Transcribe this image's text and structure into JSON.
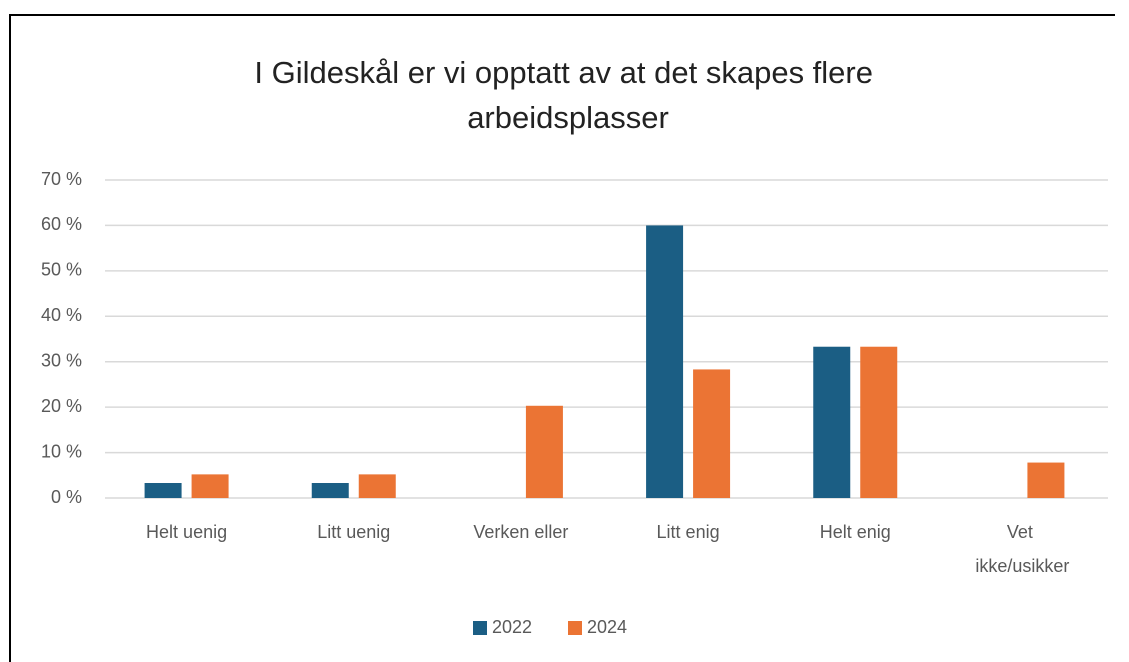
{
  "chart_data": {
    "type": "bar",
    "title": "I Gildeskål er vi opptatt av at det skapes flere arbeidsplasser",
    "categories": [
      "Helt uenig",
      "Litt uenig",
      "Verken eller",
      "Litt enig",
      "Helt enig",
      "Vet ikke/usikker"
    ],
    "series": [
      {
        "name": "2022",
        "color": "#1b5e84",
        "values": [
          3.3,
          3.3,
          0,
          60,
          33.3,
          0
        ]
      },
      {
        "name": "2024",
        "color": "#eb7434",
        "values": [
          5.2,
          5.2,
          20.3,
          28.3,
          33.3,
          7.8
        ]
      }
    ],
    "ylim": [
      0,
      70
    ],
    "yticks": [
      {
        "value": 0,
        "label": "0 %"
      },
      {
        "value": 10,
        "label": "10 %"
      },
      {
        "value": 20,
        "label": "20 %"
      },
      {
        "value": 30,
        "label": "30 %"
      },
      {
        "value": 40,
        "label": "40 %"
      },
      {
        "value": 50,
        "label": "50 %"
      },
      {
        "value": 60,
        "label": "60 %"
      },
      {
        "value": 70,
        "label": "70 %"
      }
    ],
    "grid": true,
    "legend": "bottom"
  }
}
